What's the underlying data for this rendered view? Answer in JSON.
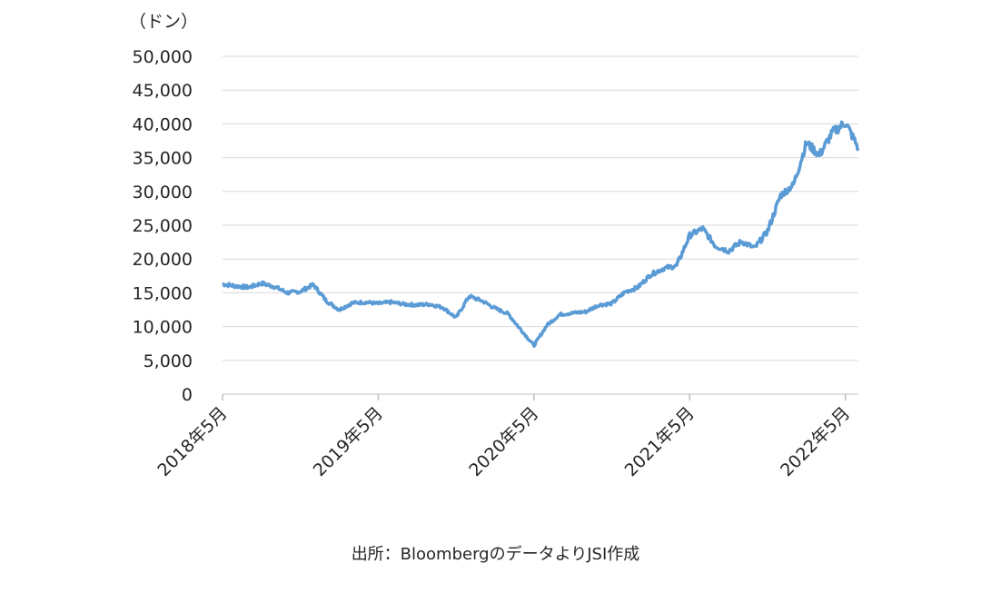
{
  "chart_data": {
    "type": "line",
    "ylabel": "（ドン）",
    "ylim": [
      0,
      50000
    ],
    "yticks": [
      0,
      5000,
      10000,
      15000,
      20000,
      25000,
      30000,
      35000,
      40000,
      45000,
      50000
    ],
    "ytick_labels": [
      "0",
      "5,000",
      "10,000",
      "15,000",
      "20,000",
      "25,000",
      "30,000",
      "35,000",
      "40,000",
      "45,000",
      "50,000"
    ],
    "xlim": [
      "2018-05",
      "2022-06"
    ],
    "xtick_labels": [
      "2018年5月",
      "2019年5月",
      "2020年5月",
      "2021年5月",
      "2022年5月"
    ],
    "xtick_values": [
      "2018-05",
      "2019-05",
      "2020-05",
      "2021-05",
      "2022-05"
    ],
    "grid": true,
    "line_color": "#5b9bd5",
    "x": [
      "2018-05",
      "2018-06",
      "2018-07",
      "2018-08",
      "2018-09",
      "2018-10",
      "2018-11",
      "2018-12",
      "2019-01",
      "2019-02",
      "2019-03",
      "2019-04",
      "2019-05",
      "2019-06",
      "2019-07",
      "2019-08",
      "2019-09",
      "2019-10",
      "2019-11",
      "2019-12",
      "2020-01",
      "2020-02",
      "2020-03",
      "2020-04",
      "2020-05",
      "2020-06",
      "2020-07",
      "2020-08",
      "2020-09",
      "2020-10",
      "2020-11",
      "2020-12",
      "2021-01",
      "2021-02",
      "2021-03",
      "2021-04",
      "2021-05",
      "2021-06",
      "2021-07",
      "2021-08",
      "2021-09",
      "2021-10",
      "2021-11",
      "2021-12",
      "2022-01",
      "2022-02",
      "2022-03",
      "2022-04",
      "2022-05",
      "2022-06"
    ],
    "values": [
      16300,
      16000,
      15800,
      16400,
      15900,
      15000,
      15200,
      16200,
      13800,
      12500,
      13500,
      13600,
      13400,
      13600,
      13300,
      13200,
      13300,
      12800,
      11300,
      14500,
      13800,
      12700,
      11900,
      9500,
      7200,
      10200,
      11800,
      12000,
      12200,
      13200,
      13400,
      15100,
      15800,
      17700,
      18600,
      19000,
      23500,
      24500,
      21900,
      21200,
      22600,
      21600,
      24100,
      29400,
      31000,
      37200,
      35400,
      38700,
      40200,
      36400
    ]
  },
  "source": "出所：Bloombergのデータより",
  "source_suffix": "JSI作成"
}
